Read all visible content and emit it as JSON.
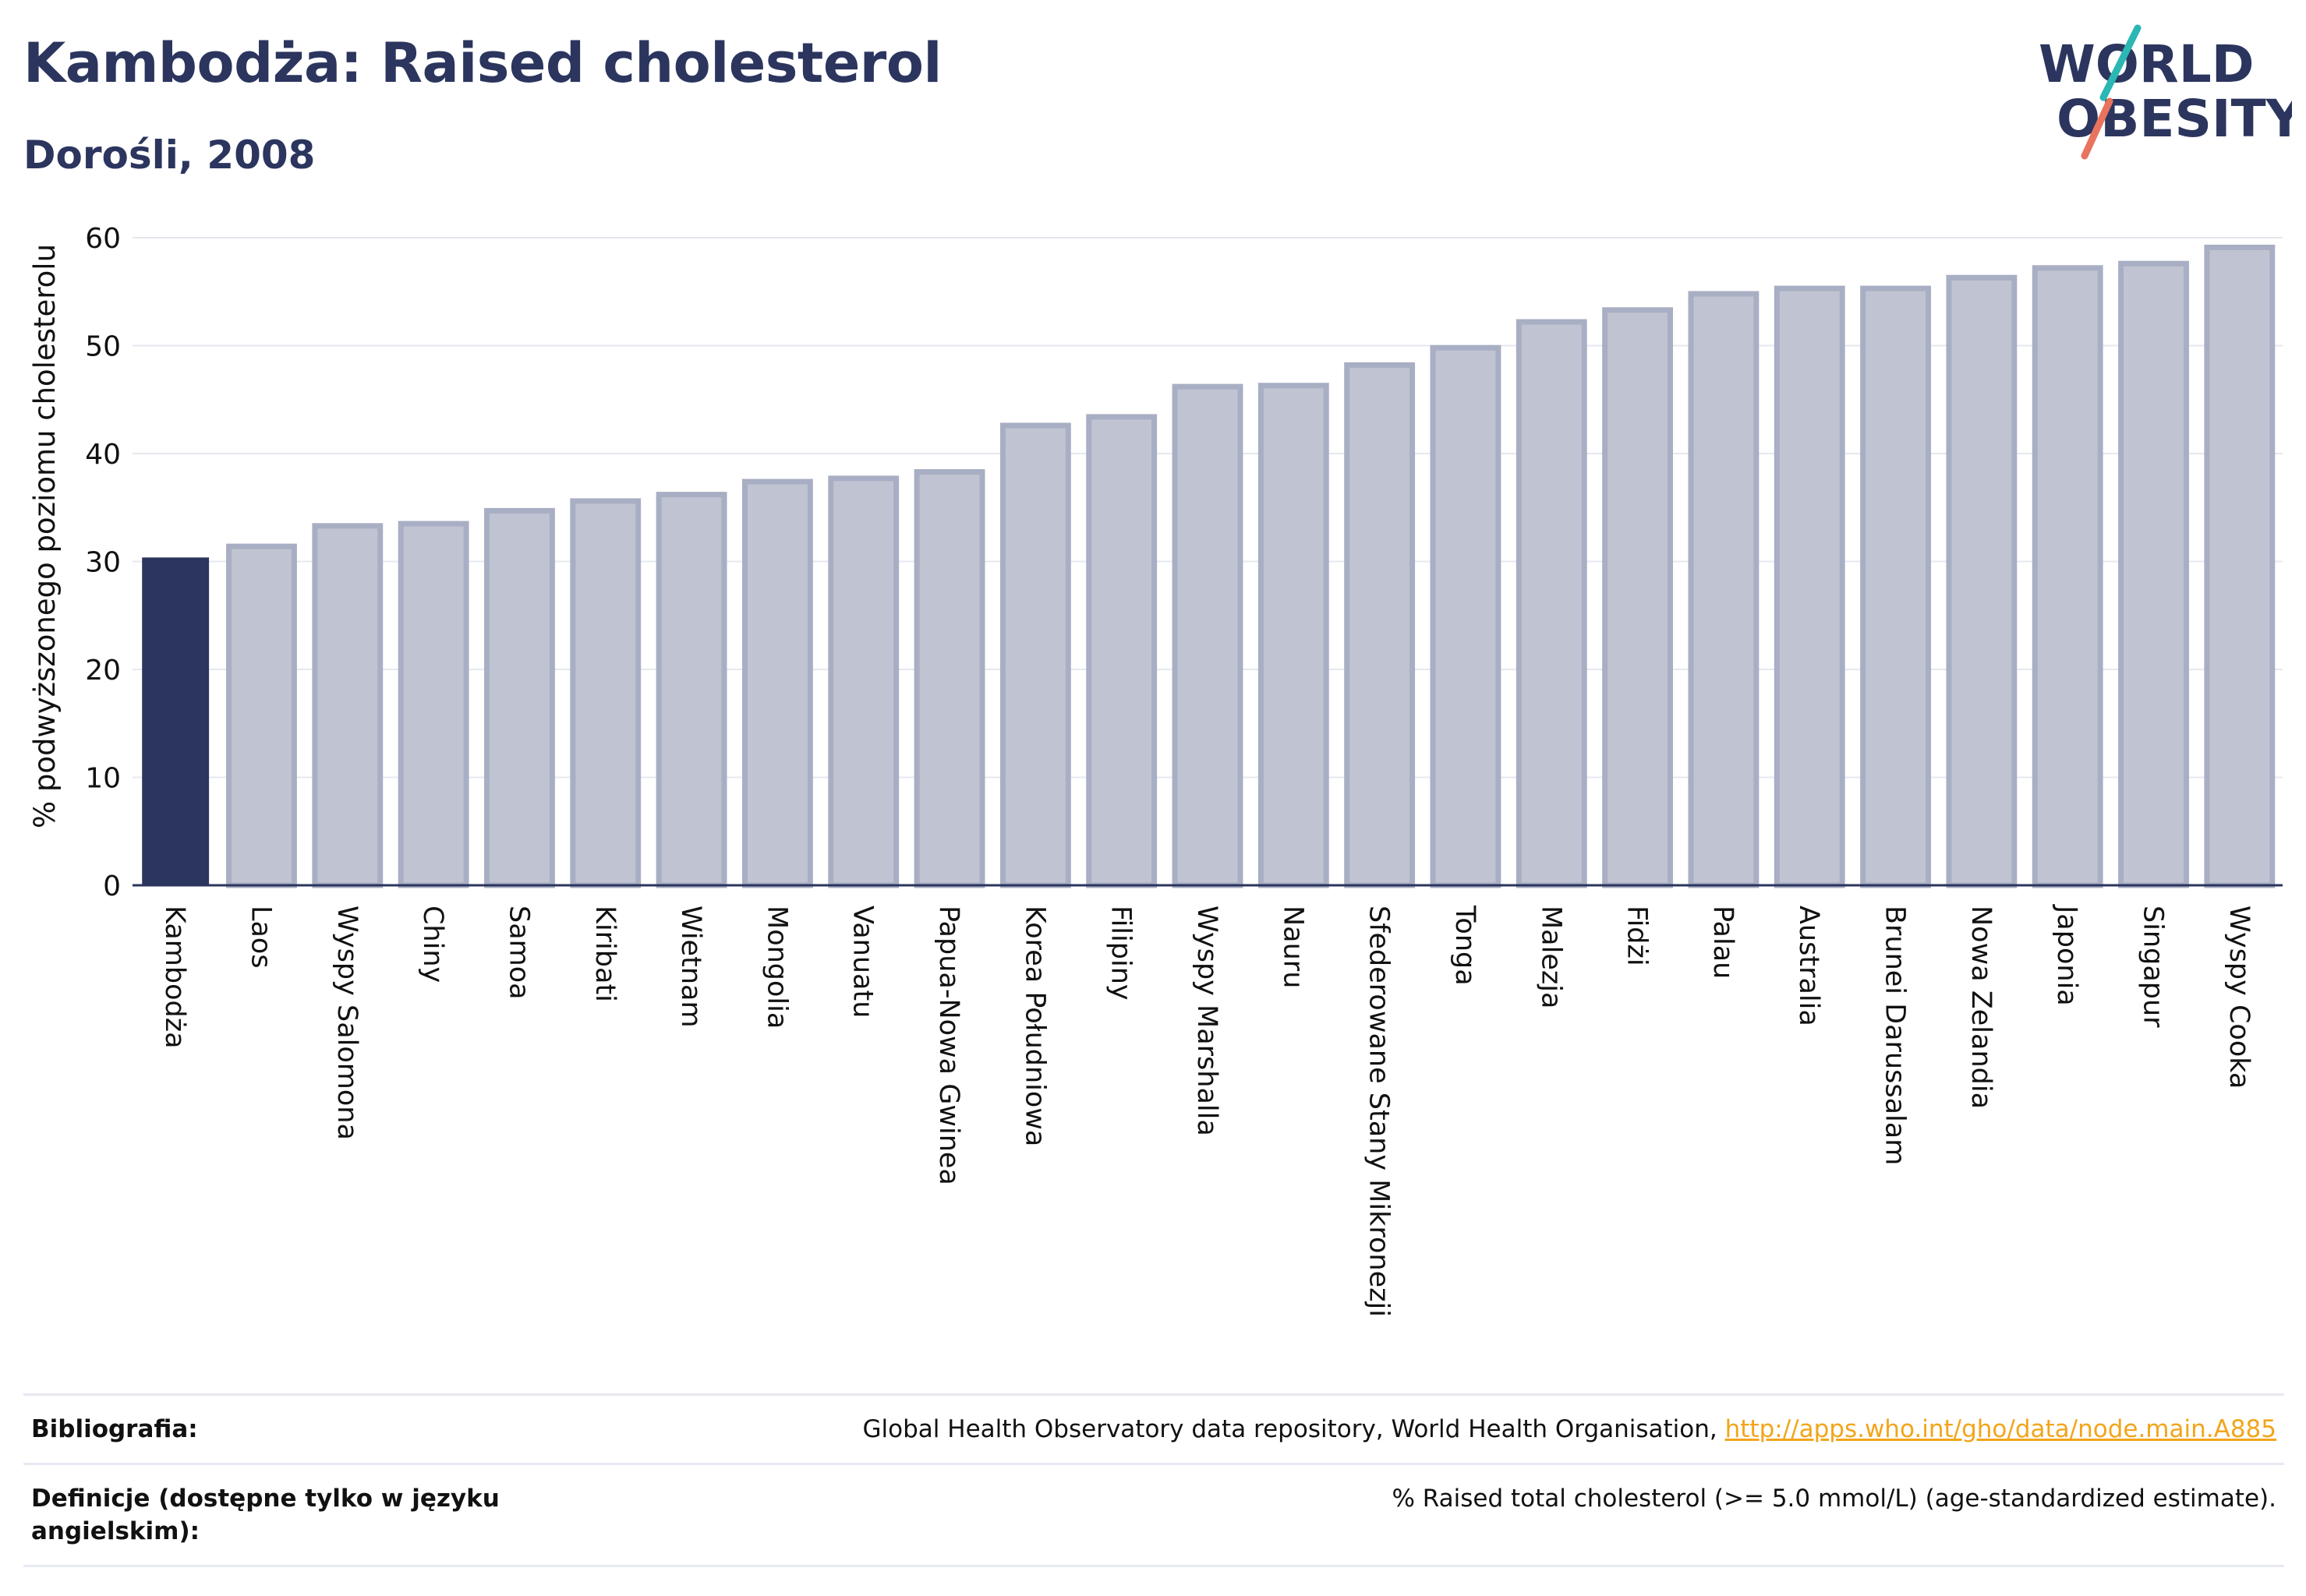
{
  "header": {
    "title": "Kambodża: Raised cholesterol",
    "subtitle": "Dorośli, 2008"
  },
  "logo": {
    "line1": "WORLD",
    "line2": "OBESITY",
    "accent_colors": [
      "#2bb7b3",
      "#e8735e"
    ]
  },
  "chart_data": {
    "type": "bar",
    "title": "",
    "xlabel": "",
    "ylabel": "% podwyższonego poziomu cholesterolu",
    "ylim": [
      0,
      60
    ],
    "yticks": [
      0,
      10,
      20,
      30,
      40,
      50,
      60
    ],
    "grid": true,
    "categories": [
      "Kambodża",
      "Laos",
      "Wyspy Salomona",
      "Chiny",
      "Samoa",
      "Kiribati",
      "Wietnam",
      "Mongolia",
      "Vanuatu",
      "Papua-Nowa Gwinea",
      "Korea Południowa",
      "Filipiny",
      "Wyspy Marshalla",
      "Nauru",
      "Sfederowane Stany Mikronezji",
      "Tonga",
      "Malezja",
      "Fidżi",
      "Palau",
      "Australia",
      "Brunei Darussalam",
      "Nowa Zelandia",
      "Japonia",
      "Singapur",
      "Wyspy Cooka"
    ],
    "values": [
      30.3,
      31.4,
      33.3,
      33.5,
      34.7,
      35.6,
      36.2,
      37.4,
      37.7,
      38.3,
      42.6,
      43.4,
      46.2,
      46.3,
      48.2,
      49.8,
      52.2,
      53.3,
      54.8,
      55.3,
      55.3,
      56.3,
      57.2,
      57.6,
      59.1
    ],
    "highlight": "Kambodża",
    "colors": {
      "highlight": "#2b355e",
      "other_fill": "#c0c4d2",
      "other_stroke": "#a8aec3",
      "grid": "#e6e8ef",
      "axis": "#2b355e"
    }
  },
  "footer": {
    "bibliography_label": "Bibliografia:",
    "bibliography_text": "Global Health Observatory data repository, World Health Organisation, ",
    "bibliography_link": "http://apps.who.int/gho/data/node.main.A885",
    "definitions_label": "Definicje (dostępne tylko w języku angielskim):",
    "definitions_text": "% Raised total cholesterol (>= 5.0 mmol/L) (age-standardized estimate)."
  }
}
